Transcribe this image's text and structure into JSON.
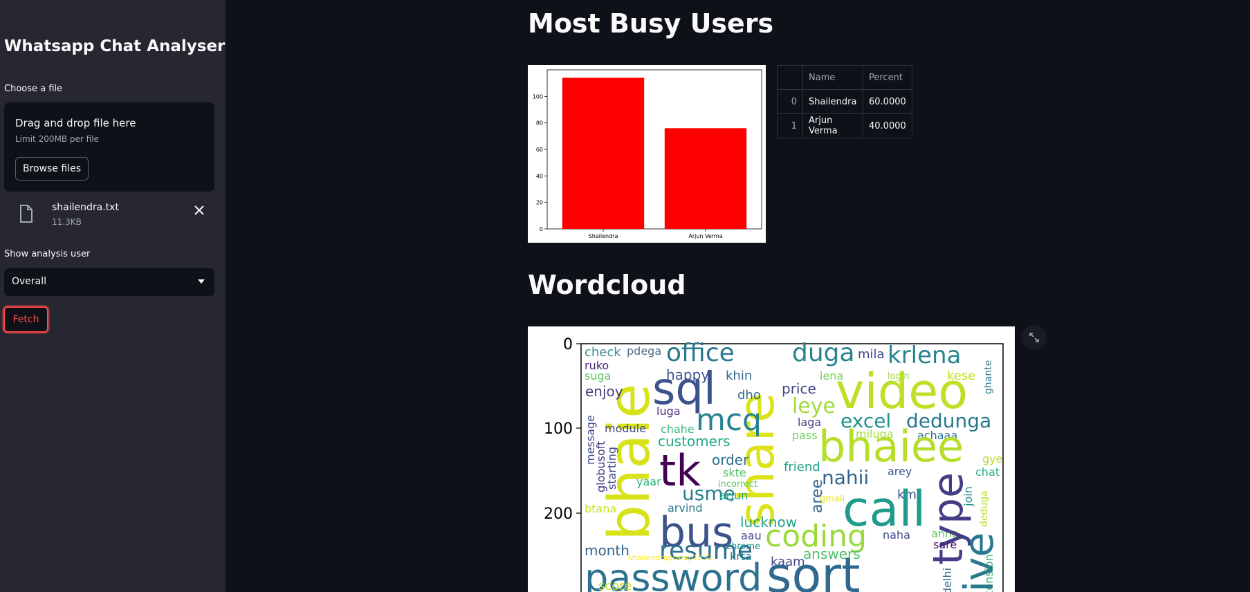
{
  "sidebar": {
    "title": "Whatsapp Chat Analyser",
    "file_label": "Choose a file",
    "dropzone": {
      "main": "Drag and drop file here",
      "sub": "Limit 200MB per file",
      "browse": "Browse files"
    },
    "file": {
      "name": "shailendra.txt",
      "size": "11.3KB",
      "icon": "file-icon"
    },
    "user_label": "Show analysis user",
    "user_selected": "Overall",
    "fetch": "Fetch",
    "accent": "#ff4b4b"
  },
  "main": {
    "busy_title": "Most Busy Users",
    "wordcloud_title": "Wordcloud",
    "table": {
      "columns": [
        "",
        "Name",
        "Percent"
      ],
      "rows": [
        {
          "index": "0",
          "name": "Shailendra",
          "percent": "60.0000"
        },
        {
          "index": "1",
          "name": "Arjun Verma",
          "percent": "40.0000"
        }
      ]
    }
  },
  "chart_data": [
    {
      "type": "bar",
      "categories": [
        "Shailendra",
        "Arjun Verma"
      ],
      "values": [
        114,
        76
      ],
      "ylim": [
        0,
        120
      ],
      "yticks": [
        0,
        20,
        40,
        60,
        80,
        100
      ],
      "bar_color": "#ff0000"
    },
    {
      "type": "heatmap",
      "yticks": [
        0,
        100,
        200
      ],
      "words": [
        {
          "w": "check",
          "c": "#3b8d8a"
        },
        {
          "w": "pdega",
          "c": "#4a6e8d"
        },
        {
          "w": "office",
          "c": "#2a788e"
        },
        {
          "w": "duga",
          "c": "#27858e"
        },
        {
          "w": "mila",
          "c": "#3e4a89"
        },
        {
          "w": "krlena",
          "c": "#25858e"
        },
        {
          "w": "ruko",
          "c": "#482878"
        },
        {
          "w": "suga",
          "c": "#5ec962"
        },
        {
          "w": "happy",
          "c": "#3b528b"
        },
        {
          "w": "khin",
          "c": "#31688e"
        },
        {
          "w": "lena",
          "c": "#7ad151"
        },
        {
          "w": "login",
          "c": "#a0da39"
        },
        {
          "w": "kese",
          "c": "#c8e020"
        },
        {
          "w": "ghante",
          "c": "#2a788e"
        },
        {
          "w": "bhaie",
          "c": "#d8e219"
        },
        {
          "w": "sql",
          "c": "#3b528b"
        },
        {
          "w": "share",
          "c": "#dde318"
        },
        {
          "w": "video",
          "c": "#bddf26"
        },
        {
          "w": "enjoy",
          "c": "#443983"
        },
        {
          "w": "dho",
          "c": "#31688e"
        },
        {
          "w": "price",
          "c": "#414487"
        },
        {
          "w": "leye",
          "c": "#9fda3a"
        },
        {
          "w": "luga",
          "c": "#472d7b"
        },
        {
          "w": "mcq",
          "c": "#26828e"
        },
        {
          "w": "excel",
          "c": "#21918c"
        },
        {
          "w": "dedunga",
          "c": "#2a788e"
        },
        {
          "w": "message",
          "c": "#3e4989"
        },
        {
          "w": "module",
          "c": "#404688"
        },
        {
          "w": "chahe",
          "c": "#35b779"
        },
        {
          "w": "laga",
          "c": "#433e85"
        },
        {
          "w": "pass",
          "c": "#6ccd5a"
        },
        {
          "w": "miluga",
          "c": "#a5db36"
        },
        {
          "w": "achaaa",
          "c": "#2e6e8e"
        },
        {
          "w": "customers",
          "c": "#22a884"
        },
        {
          "w": "bhaiee",
          "c": "#b5de2b"
        },
        {
          "w": "globusoft",
          "c": "#46307e"
        },
        {
          "w": "starting",
          "c": "#3f4788"
        },
        {
          "w": "tk",
          "c": "#440154"
        },
        {
          "w": "order",
          "c": "#2e6f8e"
        },
        {
          "w": "skte",
          "c": "#54c568"
        },
        {
          "w": "friend",
          "c": "#1fa088"
        },
        {
          "w": "gye",
          "c": "#b5de2b"
        },
        {
          "w": "arey",
          "c": "#38588c"
        },
        {
          "w": "yaar",
          "c": "#2fb47c"
        },
        {
          "w": "nahii",
          "c": "#33638d"
        },
        {
          "w": "chat",
          "c": "#29af7f"
        },
        {
          "w": "usme",
          "c": "#277f8e"
        },
        {
          "w": "incorrect",
          "c": "#5ec962"
        },
        {
          "w": "aree",
          "c": "#31688e"
        },
        {
          "w": "km",
          "c": "#3e4a89"
        },
        {
          "w": "join",
          "c": "#228c8d"
        },
        {
          "w": "btana",
          "c": "#cae11f"
        },
        {
          "w": "arvind",
          "c": "#2a788e"
        },
        {
          "w": "arjun",
          "c": "#22a785"
        },
        {
          "w": "gmail",
          "c": "#e5e419"
        },
        {
          "w": "call",
          "c": "#1e9b8a"
        },
        {
          "w": "deduga",
          "c": "#b2dd2d"
        },
        {
          "w": "bus",
          "c": "#3b528b"
        },
        {
          "w": "lucknow",
          "c": "#20a386"
        },
        {
          "w": "coding",
          "c": "#9bd93c"
        },
        {
          "w": "naha",
          "c": "#404688"
        },
        {
          "w": "anna",
          "c": "#65cb5e"
        },
        {
          "w": "aau",
          "c": "#3d4e8a"
        },
        {
          "w": "chrome",
          "c": "#1f968b"
        },
        {
          "w": "type",
          "c": "#433e85"
        },
        {
          "w": "sare",
          "c": "#481b6d"
        },
        {
          "w": "month",
          "c": "#33638d"
        },
        {
          "w": "resume",
          "c": "#2d708e"
        },
        {
          "w": "krta",
          "c": "#287c8e"
        },
        {
          "w": "answers",
          "c": "#4ac16d"
        },
        {
          "w": "shailendrapratap1812",
          "c": "#fde725"
        },
        {
          "w": "kaam",
          "c": "#414487"
        },
        {
          "w": "delhi",
          "c": "#306a8e"
        },
        {
          "w": "tension",
          "c": "#35b779"
        },
        {
          "w": "ive",
          "c": "#2a788e"
        },
        {
          "w": "password",
          "c": "#2c728e"
        },
        {
          "w": "sort",
          "c": "#31688e"
        },
        {
          "w": "score",
          "c": "#bddf26"
        }
      ]
    }
  ]
}
